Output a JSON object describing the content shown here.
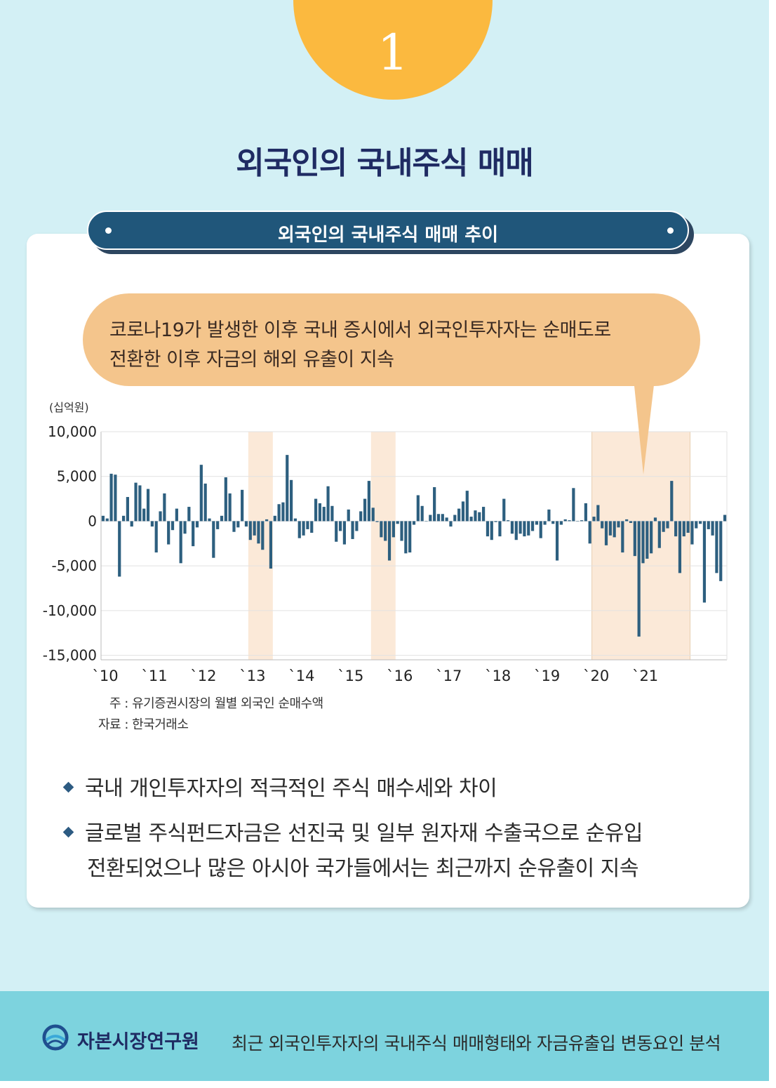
{
  "section_number": "1",
  "main_title": "외국인의 국내주식 매매",
  "banner_title": "외국인의 국내주식 매매 추이",
  "callout": {
    "line1": "코로나19가 발생한 이후 국내 증시에서 외국인투자자는 순매도로",
    "line2": "전환한 이후 자금의 해외 유출이 지속"
  },
  "chart_data": {
    "type": "bar",
    "unit_label": "(십억원)",
    "x_tick_labels": [
      "`10",
      "`11",
      "`12",
      "`13",
      "`14",
      "`15",
      "`16",
      "`17",
      "`18",
      "`19",
      "`20",
      "`21"
    ],
    "y_tick_labels": [
      "10,000",
      "5,000",
      "0",
      "-5,000",
      "-10,000",
      "-15,000"
    ],
    "ylim": [
      -15500,
      10000
    ],
    "grid": "horizontal",
    "highlighted_periods": [
      {
        "start": "2013-01",
        "end": "2013-06"
      },
      {
        "start": "2015-07",
        "end": "2015-12"
      },
      {
        "start": "2020-01",
        "end": "2021-12"
      }
    ],
    "series": [
      {
        "start": "2010-01",
        "frequency": "monthly",
        "values": [
          600,
          300,
          5300,
          5200,
          -6200,
          600,
          2700,
          -600,
          4300,
          4000,
          1400,
          3600,
          -600,
          -3500,
          1100,
          3100,
          -2600,
          -1000,
          1400,
          -4700,
          -1400,
          1600,
          -2800,
          -700,
          6300,
          4200,
          300,
          -4100,
          -900,
          600,
          4900,
          3100,
          -1200,
          -700,
          3500,
          -600,
          -2100,
          -1600,
          -2500,
          -3200,
          200,
          -5300,
          600,
          1900,
          2100,
          7400,
          4600,
          300,
          -1900,
          -1600,
          -900,
          -1300,
          2500,
          2000,
          1600,
          3900,
          1700,
          -2300,
          -1100,
          -2600,
          1300,
          -2000,
          -1100,
          1100,
          2500,
          4500,
          1500,
          -100,
          -1800,
          -2200,
          -4400,
          -1800,
          -300,
          -2200,
          -3600,
          -3500,
          -400,
          2900,
          1700,
          0,
          700,
          3800,
          800,
          800,
          400,
          -600,
          700,
          1400,
          2200,
          3400,
          500,
          1200,
          1000,
          1600,
          -1700,
          -2100,
          -100,
          -1700,
          2500,
          100,
          -1400,
          -2100,
          -1400,
          -1700,
          -1600,
          -1100,
          -400,
          -1900,
          -400,
          1300,
          -300,
          -4400,
          -400,
          200,
          100,
          3700,
          0,
          100,
          2000,
          -2500,
          500,
          1800,
          -800,
          -2700,
          -1600,
          -1800,
          -700,
          -3500,
          200,
          -200,
          -3900,
          -12900,
          -4700,
          -4200,
          -3600,
          400,
          -3000,
          -1200,
          -800,
          4500,
          -1700,
          -5800,
          -1700,
          -1300,
          -2600,
          -800,
          -300,
          -9100,
          -900,
          -1600,
          -5800,
          -6700,
          700
        ]
      }
    ]
  },
  "notes": {
    "note": "주 : 유기증권시장의 월별 외국인 순매수액",
    "source": "자료 : 한국거래소"
  },
  "bullets": [
    {
      "lines": [
        "국내 개인투자자의 적극적인 주식 매수세와 차이"
      ]
    },
    {
      "lines": [
        "글로벌 주식펀드자금은 선진국 및 일부 원자재 수출국으로 순유입",
        "전환되었으나 많은 아시아 국가들에서는 최근까지 순유출이 지속"
      ]
    }
  ],
  "footer": {
    "org_name": "자본시장연구원",
    "report_title": "최근 외국인투자자의 국내주식 매매형태와 자금유출입 변동요인 분석"
  },
  "colors": {
    "background": "#d3f0f5",
    "number_circle": "#fbb93f",
    "title": "#1f2b63",
    "banner": "#20567a",
    "callout": "#f4c58c",
    "bar": "#2d5f7f",
    "highlight": "#fbe9d8",
    "footer": "#7dd3de"
  }
}
